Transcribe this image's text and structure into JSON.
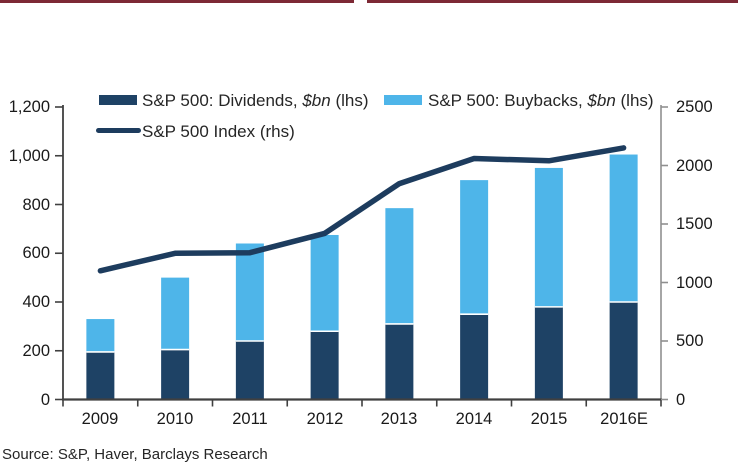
{
  "page": {
    "top_rule_color": "#7d2935",
    "background": "#ffffff"
  },
  "legend": {
    "items": [
      {
        "name": "dividends",
        "pre": "S&P 500: Dividends, ",
        "unit": "$bn",
        "post": " (lhs)",
        "color": "#1e4265",
        "type": "bar"
      },
      {
        "name": "buybacks",
        "pre": "S&P 500: Buybacks, ",
        "unit": "$bn",
        "post": " (lhs)",
        "color": "#4eb5e9",
        "type": "bar"
      },
      {
        "name": "index",
        "label": "S&P 500 Index (rhs)",
        "color": "#1d3c5e",
        "type": "line"
      }
    ]
  },
  "source": "Source: S&P, Haver, Barclays Research",
  "chart_data": {
    "type": "bar",
    "subtype": "stacked-bars-with-line",
    "categories": [
      "2009",
      "2010",
      "2011",
      "2012",
      "2013",
      "2014",
      "2015",
      "2016E"
    ],
    "series": [
      {
        "name": "S&P 500: Dividends, $bn (lhs)",
        "type": "bar",
        "axis": "left",
        "color": "#1e4265",
        "values": [
          195,
          205,
          240,
          280,
          310,
          350,
          380,
          400
        ]
      },
      {
        "name": "S&P 500: Buybacks, $bn (lhs)",
        "type": "bar",
        "axis": "left",
        "color": "#4eb5e9",
        "values": [
          135,
          295,
          400,
          395,
          475,
          550,
          570,
          605
        ]
      },
      {
        "name": "S&P 500 Index (rhs)",
        "type": "line",
        "axis": "right",
        "color": "#1d3c5e",
        "values": [
          1100,
          1250,
          1255,
          1420,
          1845,
          2060,
          2040,
          2150
        ]
      }
    ],
    "left_axis": {
      "min": 0,
      "max": 1200,
      "ticks": [
        "1,200",
        "1,000",
        "800",
        "600",
        "400",
        "200",
        "0"
      ]
    },
    "right_axis": {
      "min": 0,
      "max": 2500,
      "ticks": [
        "2500",
        "2000",
        "1500",
        "1000",
        "500",
        "0"
      ]
    },
    "stacked": true,
    "grid": false,
    "legend_position": "top",
    "title": "",
    "xlabel": "",
    "ylabel": ""
  }
}
